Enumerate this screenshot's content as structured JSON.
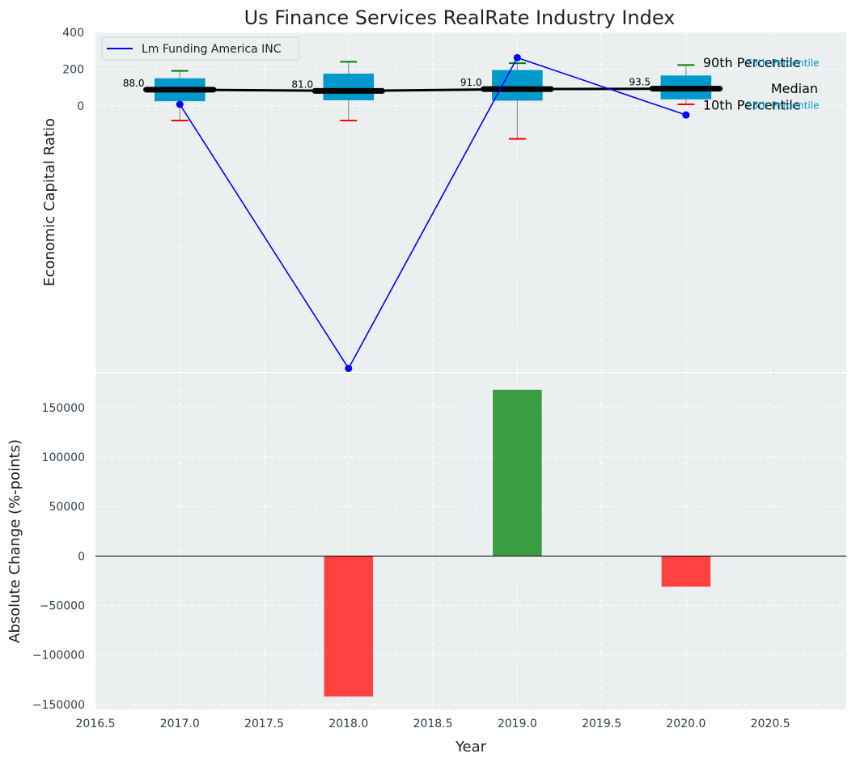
{
  "chart_data": [
    {
      "type": "box_with_line",
      "title": "Us Finance Services RealRate Industry Index",
      "xlabel": "",
      "ylabel": "Economic Capital Ratio",
      "xlim": [
        2016.5,
        2020.95
      ],
      "ylim": [
        -1450,
        400
      ],
      "yticks": [
        0,
        200,
        400
      ],
      "ytick_labels": [
        "0",
        "200",
        "400"
      ],
      "grid": true,
      "legend": {
        "position": "top-left",
        "entries": [
          "Lm Funding America INC"
        ]
      },
      "colors": {
        "box": "#0099cc",
        "line": "#0000ff",
        "median": "#000000",
        "upper_cap": "#008000",
        "lower_cap": "#ff0000",
        "whisker": "#808080"
      },
      "boxes": [
        {
          "x": 2017,
          "p10": -80,
          "p25": 25,
          "median": 88,
          "p75": 150,
          "p90": 190,
          "label": "88.0"
        },
        {
          "x": 2018,
          "p10": -80,
          "p25": 30,
          "median": 81,
          "p75": 175,
          "p90": 240,
          "label": "81.0"
        },
        {
          "x": 2019,
          "p10": -180,
          "p25": 28,
          "median": 91,
          "p75": 195,
          "p90": 232,
          "label": "91.0"
        },
        {
          "x": 2020,
          "p10": 8,
          "p25": 35,
          "median": 93.5,
          "p75": 165,
          "p90": 222,
          "label": "93.5"
        }
      ],
      "median_line": {
        "x": [
          2017,
          2018,
          2019,
          2020
        ],
        "y": [
          88,
          81,
          91,
          93.5
        ]
      },
      "series": [
        {
          "name": "Lm Funding America INC",
          "x": [
            2017,
            2018,
            2019,
            2020
          ],
          "y": [
            8,
            -1430,
            262,
            -50
          ]
        }
      ],
      "annotations": {
        "p90": "90th Percentile",
        "p75": "75th Percentile",
        "median": "Median",
        "p25": "25th Percentile",
        "p10": "10th Percentile"
      }
    },
    {
      "type": "bar",
      "title": "",
      "xlabel": "Year",
      "ylabel": "Absolute Change (%-points)",
      "xlim": [
        2016.5,
        2020.95
      ],
      "ylim": [
        -155000,
        185000
      ],
      "xticks": [
        2016.5,
        2017.0,
        2017.5,
        2018.0,
        2018.5,
        2019.0,
        2019.5,
        2020.0,
        2020.5
      ],
      "xtick_labels": [
        "2016.5",
        "2017.0",
        "2017.5",
        "2018.0",
        "2018.5",
        "2019.0",
        "2019.5",
        "2020.0",
        "2020.5"
      ],
      "yticks": [
        -150000,
        -100000,
        -50000,
        0,
        50000,
        100000,
        150000
      ],
      "ytick_labels": [
        "−150000",
        "−100000",
        "−50000",
        "0",
        "50000",
        "100000",
        "150000"
      ],
      "grid": true,
      "colors": {
        "positive": "#2a9632",
        "negative": "#ff3333"
      },
      "bar_width": 0.29,
      "x": [
        2018,
        2019,
        2020
      ],
      "values": [
        -142000,
        168000,
        -31000
      ]
    }
  ]
}
